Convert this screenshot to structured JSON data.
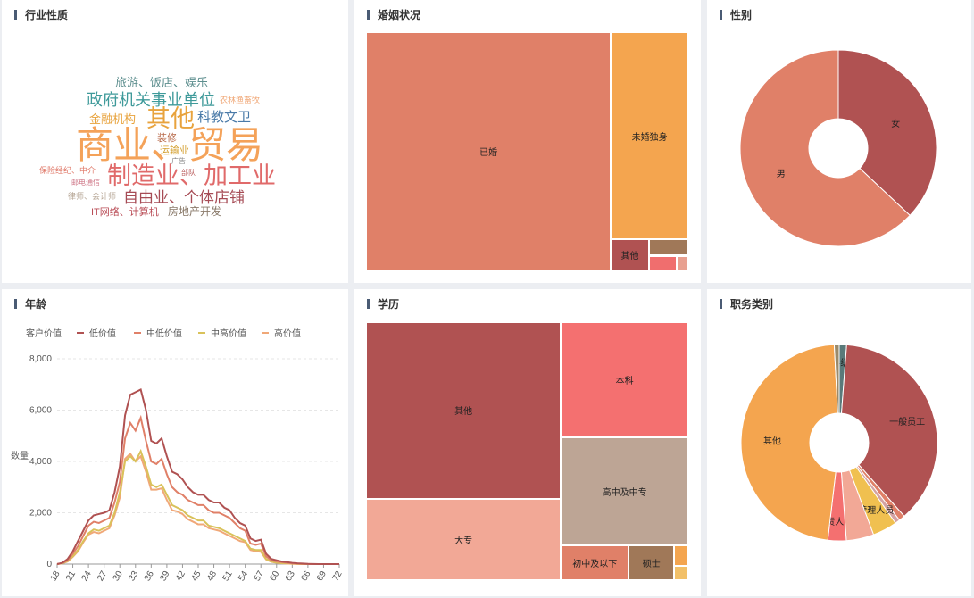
{
  "panels": {
    "industry": {
      "title": "行业性质"
    },
    "marriage": {
      "title": "婚姻状况"
    },
    "gender": {
      "title": "性别"
    },
    "age": {
      "title": "年龄"
    },
    "education": {
      "title": "学历"
    },
    "job": {
      "title": "职务类别"
    }
  },
  "wordcloud": {
    "words": [
      {
        "text": "商业、贸易",
        "color": "#f4a259"
      },
      {
        "text": "制造业、加工业",
        "color": "#e06a6a"
      },
      {
        "text": "其他",
        "color": "#e8a33d"
      },
      {
        "text": "政府机关事业单位",
        "color": "#3f9a9a"
      },
      {
        "text": "自由业、个体店铺",
        "color": "#a64b55"
      },
      {
        "text": "科教文卫",
        "color": "#4a7aa8"
      },
      {
        "text": "金融机构",
        "color": "#e8a33d"
      },
      {
        "text": "旅游、饭店、娱乐",
        "color": "#5e8f8f"
      },
      {
        "text": "房地产开发",
        "color": "#8a7a6a"
      },
      {
        "text": "IT网络、计算机",
        "color": "#b94c56"
      },
      {
        "text": "装修",
        "color": "#b86a4a"
      },
      {
        "text": "运输业",
        "color": "#d4a030"
      },
      {
        "text": "农林渔畜牧",
        "color": "#f0a878"
      },
      {
        "text": "保险经纪、中介",
        "color": "#e07a6a"
      },
      {
        "text": "广告",
        "color": "#8a8a8a"
      },
      {
        "text": "部队",
        "color": "#b85a5a"
      },
      {
        "text": "邮电通信",
        "color": "#d07a8a"
      },
      {
        "text": "律师、会计师",
        "color": "#b8a898"
      }
    ]
  },
  "chart_data": [
    {
      "type": "treemap",
      "title": "婚姻状况",
      "items": [
        {
          "name": "已婚",
          "value": 1000,
          "color": "#e08068"
        },
        {
          "name": "未婚独身",
          "value": 275,
          "color": "#f4a54f"
        },
        {
          "name": "其他",
          "value": 20,
          "color": "#b05252"
        },
        {
          "name": "",
          "value": 11,
          "color": "#a07858"
        },
        {
          "name": "",
          "value": 7,
          "color": "#f06e6e"
        },
        {
          "name": "",
          "value": 3,
          "color": "#e8a090"
        }
      ]
    },
    {
      "type": "pie",
      "title": "性别",
      "slices": [
        {
          "name": "女",
          "value": 37,
          "color": "#b05252"
        },
        {
          "name": "男",
          "value": 63,
          "color": "#e08068"
        }
      ]
    },
    {
      "type": "line",
      "title": "年龄",
      "legend_title": "客户价值",
      "ylabel": "数量",
      "ylim": [
        0,
        8000
      ],
      "yticks": [
        0,
        2000,
        4000,
        6000,
        8000
      ],
      "ytick_labels": [
        "0",
        "2,000",
        "4,000",
        "6,000",
        "8,000"
      ],
      "x": [
        18,
        19,
        20,
        21,
        22,
        23,
        24,
        25,
        26,
        27,
        28,
        29,
        30,
        31,
        32,
        33,
        34,
        35,
        36,
        37,
        38,
        39,
        40,
        41,
        42,
        43,
        44,
        45,
        46,
        47,
        48,
        49,
        50,
        51,
        52,
        53,
        54,
        55,
        56,
        57,
        58,
        59,
        60,
        61,
        62,
        63,
        64,
        65,
        66,
        67,
        68,
        69,
        70,
        71,
        72
      ],
      "xtick_labels": [
        "18",
        "21",
        "24",
        "27",
        "30",
        "33",
        "36",
        "39",
        "42",
        "45",
        "48",
        "51",
        "54",
        "57",
        "60",
        "63",
        "66",
        "69",
        "72"
      ],
      "series": [
        {
          "name": "低价值",
          "color": "#b05252",
          "values": [
            0,
            50,
            200,
            500,
            900,
            1300,
            1700,
            1900,
            1950,
            2000,
            2100,
            2800,
            3800,
            5800,
            6600,
            6700,
            6800,
            6000,
            4800,
            4700,
            4900,
            4200,
            3600,
            3500,
            3300,
            3000,
            2800,
            2700,
            2700,
            2500,
            2400,
            2400,
            2200,
            2100,
            1800,
            1600,
            1500,
            1000,
            900,
            950,
            400,
            200,
            150,
            100,
            80,
            50,
            30,
            20,
            10,
            5,
            0,
            0,
            0,
            0,
            0
          ]
        },
        {
          "name": "中低价值",
          "color": "#e08068",
          "values": [
            0,
            40,
            150,
            400,
            700,
            1100,
            1500,
            1650,
            1600,
            1700,
            1800,
            2400,
            3200,
            4900,
            5500,
            5200,
            5700,
            4800,
            4000,
            3900,
            4100,
            3500,
            3000,
            2800,
            2700,
            2500,
            2400,
            2300,
            2300,
            2100,
            2000,
            2000,
            1900,
            1800,
            1600,
            1400,
            1300,
            800,
            750,
            800,
            300,
            150,
            100,
            80,
            50,
            30,
            20,
            10,
            5,
            0,
            0,
            0,
            0,
            0,
            0
          ]
        },
        {
          "name": "中高价值",
          "color": "#d9c25a",
          "values": [
            0,
            30,
            120,
            300,
            550,
            900,
            1200,
            1350,
            1300,
            1400,
            1500,
            2000,
            2800,
            4000,
            4200,
            4000,
            4400,
            3800,
            3100,
            3000,
            3100,
            2700,
            2300,
            2200,
            2100,
            1900,
            1800,
            1700,
            1700,
            1500,
            1450,
            1400,
            1300,
            1200,
            1100,
            1000,
            900,
            600,
            550,
            550,
            200,
            100,
            60,
            40,
            30,
            20,
            10,
            5,
            0,
            0,
            0,
            0,
            0,
            0,
            0
          ]
        },
        {
          "name": "高价值",
          "color": "#f0a878",
          "values": [
            0,
            30,
            100,
            280,
            500,
            850,
            1150,
            1250,
            1200,
            1300,
            1400,
            1900,
            2600,
            4100,
            4300,
            4000,
            4200,
            3600,
            2900,
            2900,
            2950,
            2500,
            2100,
            2050,
            1950,
            1750,
            1650,
            1550,
            1550,
            1400,
            1350,
            1300,
            1200,
            1100,
            1000,
            900,
            850,
            550,
            500,
            480,
            180,
            90,
            50,
            30,
            20,
            10,
            5,
            0,
            0,
            0,
            0,
            0,
            0,
            0,
            0
          ]
        }
      ]
    },
    {
      "type": "treemap",
      "title": "学历",
      "items": [
        {
          "name": "其他",
          "value": 350,
          "color": "#b05252"
        },
        {
          "name": "大专",
          "value": 162,
          "color": "#f2a896"
        },
        {
          "name": "本科",
          "value": 150,
          "color": "#f47070"
        },
        {
          "name": "高中及中专",
          "value": 140,
          "color": "#bda595"
        },
        {
          "name": "初中及以下",
          "value": 24,
          "color": "#e08068"
        },
        {
          "name": "硕士",
          "value": 16,
          "color": "#a07858"
        },
        {
          "name": "",
          "value": 3,
          "color": "#f4a54f"
        },
        {
          "name": "",
          "value": 2,
          "color": "#f2c068"
        }
      ]
    },
    {
      "type": "pie",
      "title": "职务类别",
      "slices": [
        {
          "name": "科级",
          "value": 1.2,
          "color": "#5a7a7a"
        },
        {
          "name": "一般员工",
          "value": 37,
          "color": "#b05252"
        },
        {
          "name": "",
          "value": 1,
          "color": "#e08068"
        },
        {
          "name": "",
          "value": 0.8,
          "color": "#d4a3a3"
        },
        {
          "name": "一般管理人员",
          "value": 4,
          "color": "#f0c050"
        },
        {
          "name": "",
          "value": 4.5,
          "color": "#f2a896"
        },
        {
          "name": "企业负责人",
          "value": 3,
          "color": "#f47070"
        },
        {
          "name": "其他",
          "value": 47,
          "color": "#f4a54f"
        },
        {
          "name": "",
          "value": 0.8,
          "color": "#9a8a6a"
        }
      ]
    }
  ]
}
